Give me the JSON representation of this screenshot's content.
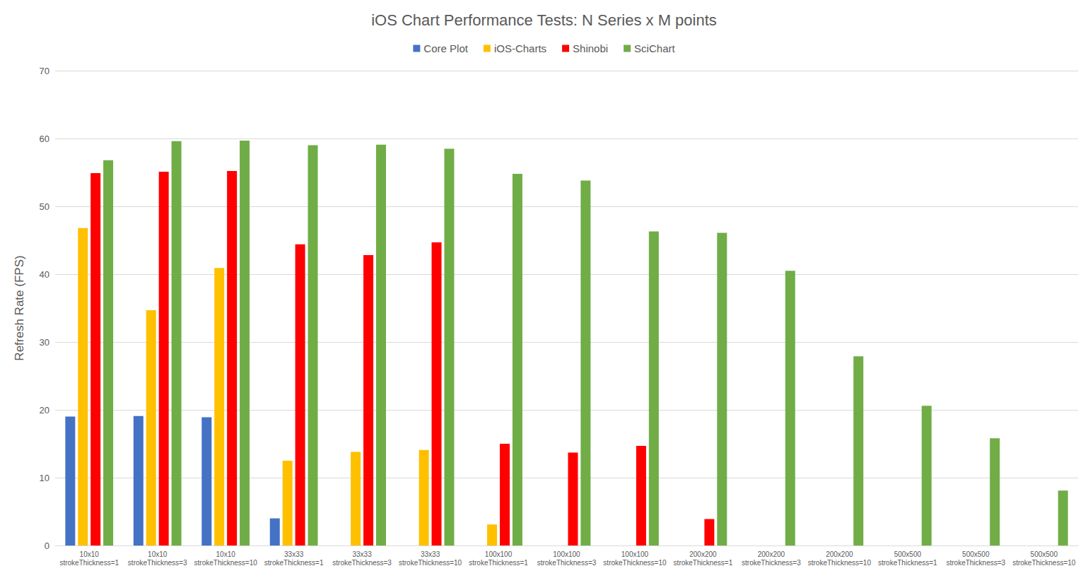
{
  "chart_data": {
    "type": "bar",
    "title": "iOS Chart Performance Tests: N Series x M points",
    "y_label": "Refresh Rate (FPS)",
    "categories": [
      "10x10\nstrokeThickness=1",
      "10x10\nstrokeThickness=3",
      "10x10\nstrokeThickness=10",
      "33x33\nstrokeThickness=1",
      "33x33\nstrokeThickness=3",
      "33x33\nstrokeThickness=10",
      "100x100\nstrokeThickness=1",
      "100x100\nstrokeThickness=3",
      "100x100\nstrokeThickness=10",
      "200x200\nstrokeThickness=1",
      "200x200\nstrokeThickness=3",
      "200x200\nstrokeThickness=10",
      "500x500\nstrokeThickness=1",
      "500x500\nstrokeThickness=3",
      "500x500\nstrokeThickness=10"
    ],
    "series": [
      {
        "name": "Core Plot",
        "color": "#4472c4",
        "values": [
          19,
          19.1,
          18.9,
          4,
          null,
          null,
          null,
          null,
          null,
          null,
          null,
          null,
          null,
          null,
          null
        ]
      },
      {
        "name": "iOS-Charts",
        "color": "#ffc000",
        "values": [
          46.8,
          34.7,
          40.9,
          12.5,
          13.8,
          14.1,
          3.1,
          null,
          null,
          null,
          null,
          null,
          null,
          null,
          null
        ]
      },
      {
        "name": "Shinobi",
        "color": "#ff0000",
        "values": [
          54.9,
          55.1,
          55.2,
          44.4,
          42.8,
          44.7,
          15,
          13.7,
          14.7,
          3.9,
          null,
          null,
          null,
          null,
          null
        ]
      },
      {
        "name": "SciChart",
        "color": "#70ad47",
        "values": [
          56.8,
          59.6,
          59.7,
          59,
          59.1,
          58.5,
          54.8,
          53.8,
          46.3,
          46.1,
          40.5,
          27.9,
          20.6,
          15.8,
          8.1
        ]
      }
    ],
    "ylim": [
      0,
      70
    ],
    "yticks": [
      0,
      10,
      20,
      30,
      40,
      50,
      60,
      70
    ],
    "grid": true,
    "legend": "top"
  }
}
